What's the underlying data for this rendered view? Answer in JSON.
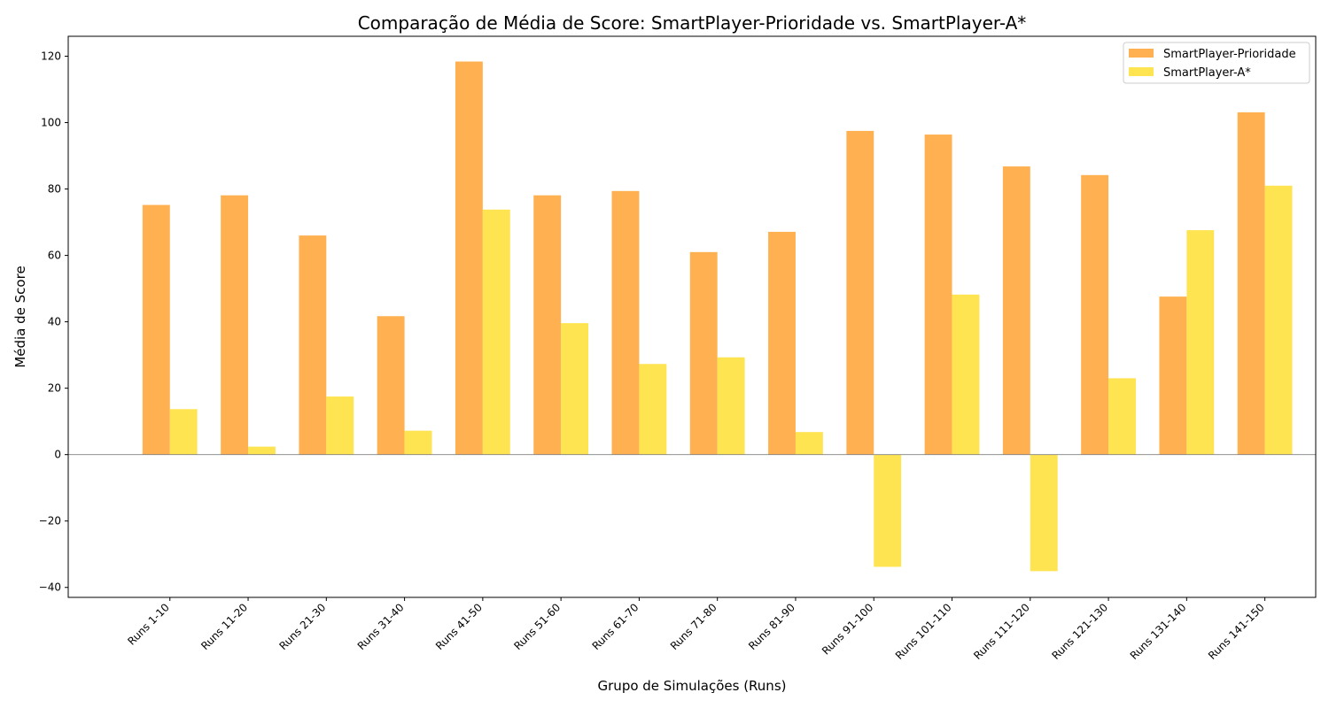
{
  "chart_data": {
    "type": "bar",
    "title": "Comparação de Média de Score: SmartPlayer-Prioridade vs. SmartPlayer-A*",
    "xlabel": "Grupo de Simulações (Runs)",
    "ylabel": "Média de Score",
    "ylim": [
      -43,
      126
    ],
    "yticks": [
      -40,
      -20,
      0,
      20,
      40,
      60,
      80,
      100,
      120
    ],
    "ytick_labels": [
      "−40",
      "−20",
      "0",
      "20",
      "40",
      "60",
      "80",
      "100",
      "120"
    ],
    "grid": false,
    "legend_position": "top-right",
    "categories": [
      "Runs 1-10",
      "Runs 11-20",
      "Runs 21-30",
      "Runs 31-40",
      "Runs 41-50",
      "Runs 51-60",
      "Runs 61-70",
      "Runs 71-80",
      "Runs 81-90",
      "Runs 91-100",
      "Runs 101-110",
      "Runs 111-120",
      "Runs 121-130",
      "Runs 131-140",
      "Runs 141-150"
    ],
    "series": [
      {
        "name": "SmartPlayer-Prioridade",
        "color": "#ffa333",
        "values": [
          75.2,
          78.1,
          66.0,
          41.7,
          118.4,
          78.1,
          79.4,
          61.0,
          67.1,
          97.5,
          96.4,
          86.8,
          84.2,
          47.6,
          103.1
        ]
      },
      {
        "name": "SmartPlayer-A*",
        "color": "#ffdf33",
        "values": [
          13.7,
          2.4,
          17.5,
          7.2,
          73.8,
          39.6,
          27.3,
          29.3,
          6.8,
          -33.8,
          48.2,
          -35.1,
          23.0,
          67.6,
          81.0
        ]
      }
    ]
  }
}
